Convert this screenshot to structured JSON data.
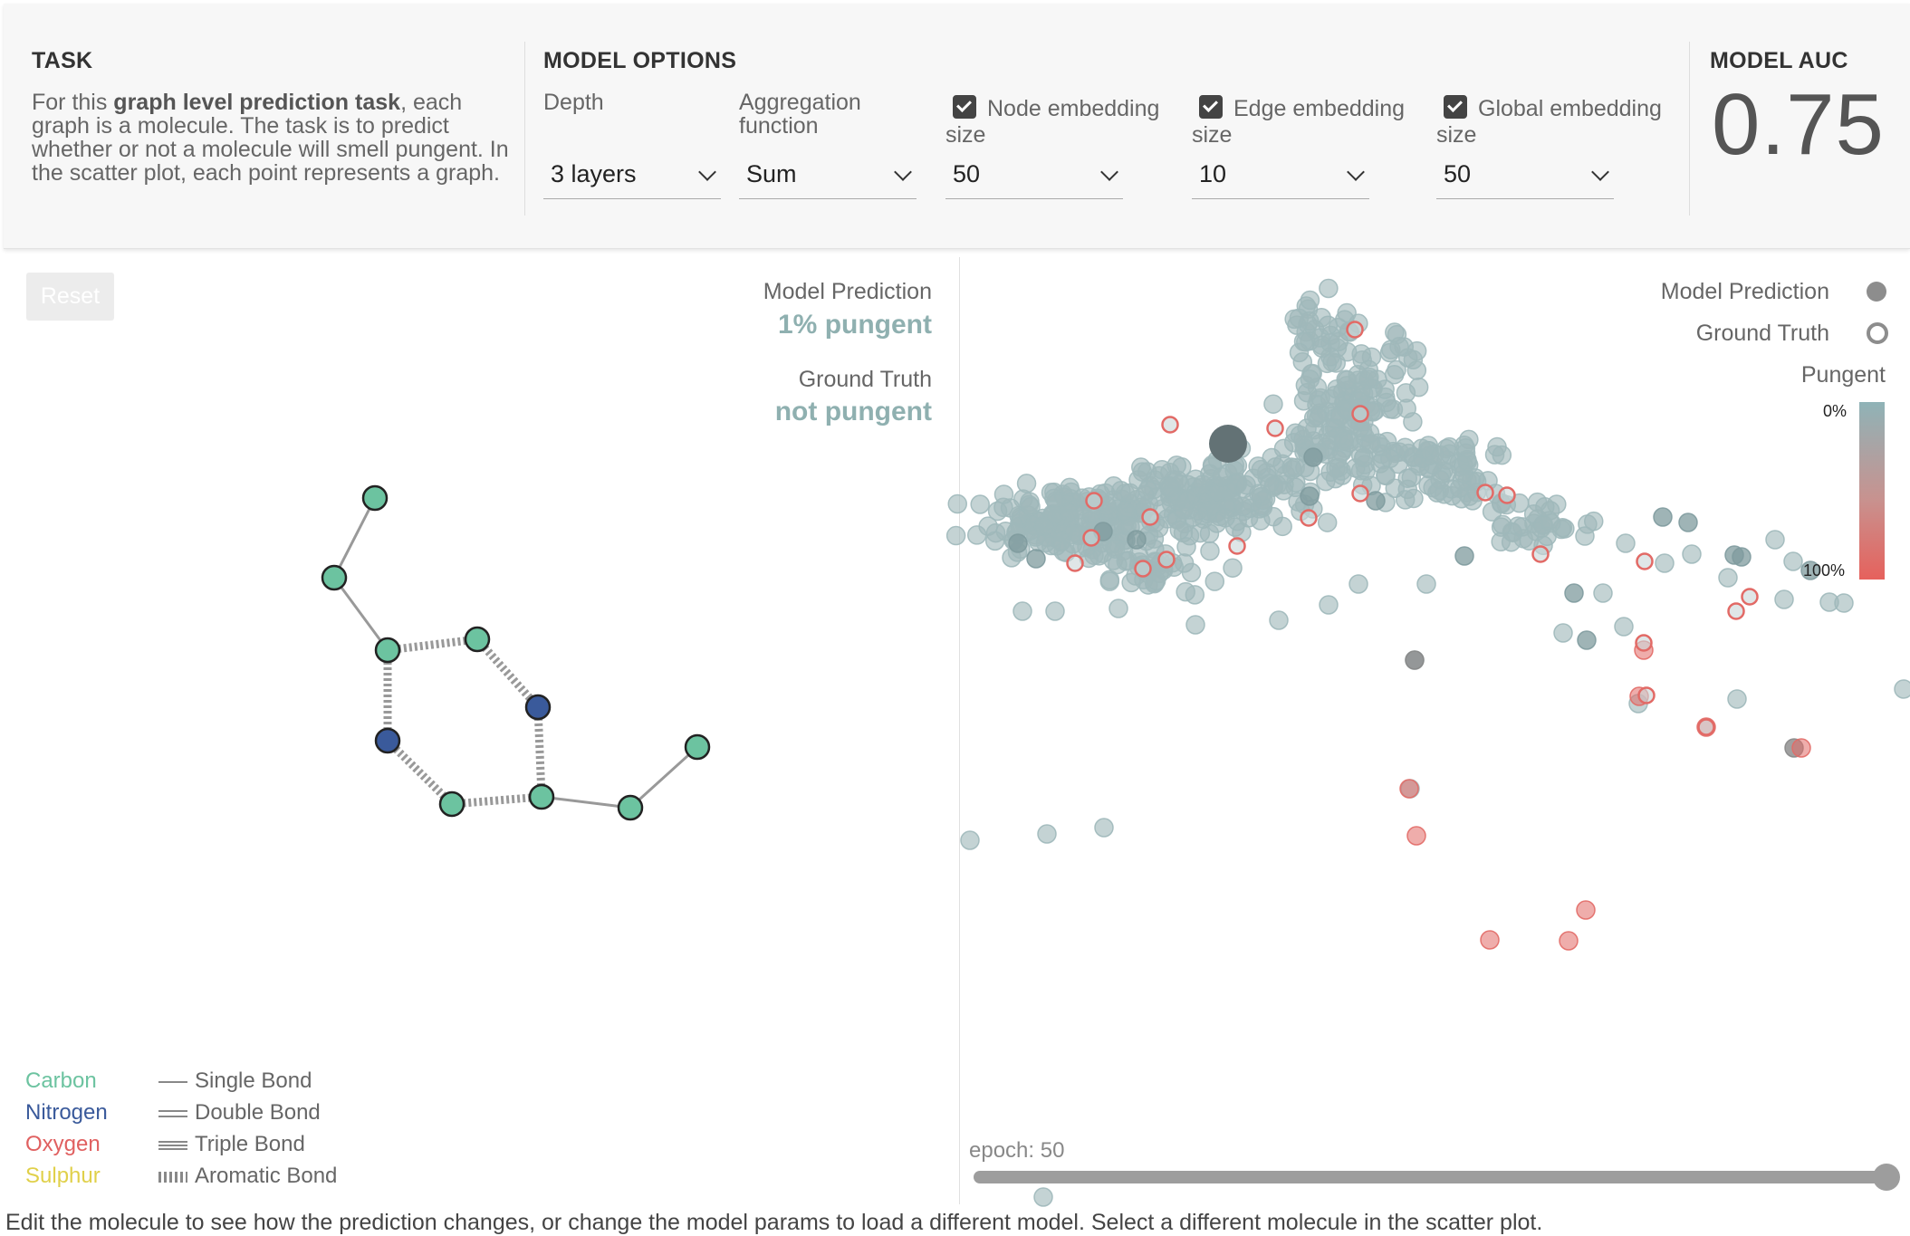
{
  "task": {
    "title": "TASK",
    "desc_before": "For this ",
    "desc_bold": "graph level prediction task",
    "desc_after": ", each graph is a molecule. The task is to predict whether or not a molecule will smell pungent. In the scatter plot, each point represents a graph."
  },
  "model_options": {
    "title": "MODEL OPTIONS",
    "depth": {
      "label": "Depth",
      "value": "3 layers"
    },
    "aggregation": {
      "label": "Aggregation function",
      "value": "Sum"
    },
    "node_embedding": {
      "label": "Node embedding size",
      "value": "50",
      "checked": true
    },
    "edge_embedding": {
      "label": "Edge embedding size",
      "value": "10",
      "checked": true
    },
    "global_embedding": {
      "label": "Global embedding size",
      "value": "50",
      "checked": true
    }
  },
  "model_auc": {
    "title": "MODEL AUC",
    "value": "0.75"
  },
  "molecule_panel": {
    "reset_label": "Reset",
    "prediction_label": "Model Prediction",
    "prediction_value": "1% pungent",
    "truth_label": "Ground Truth",
    "truth_value": "not pungent",
    "atom_legend": [
      {
        "name": "Carbon",
        "color": "#6cc3a0"
      },
      {
        "name": "Nitrogen",
        "color": "#3a5a9b"
      },
      {
        "name": "Oxygen",
        "color": "#e06060"
      },
      {
        "name": "Sulphur",
        "color": "#e0d04a"
      }
    ],
    "bond_legend": [
      "Single Bond",
      "Double Bond",
      "Triple Bond",
      "Aromatic Bond"
    ]
  },
  "scatter_panel": {
    "legend_prediction": "Model Prediction",
    "legend_truth": "Ground Truth",
    "legend_pungent": "Pungent",
    "scale_min": "0%",
    "scale_max": "100%",
    "epoch_label": "epoch: 50",
    "epoch_fraction": 1.0
  },
  "colors": {
    "not_pungent": "#9fb8ba",
    "pungent": "#e26a66",
    "selected": "#637275",
    "carbon": "#6cc3a0",
    "nitrogen": "#3a5a9b"
  },
  "footer": "Edit the molecule to see how the prediction changes, or change the model params to load a different model. Select a different molecule in the scatter plot."
}
